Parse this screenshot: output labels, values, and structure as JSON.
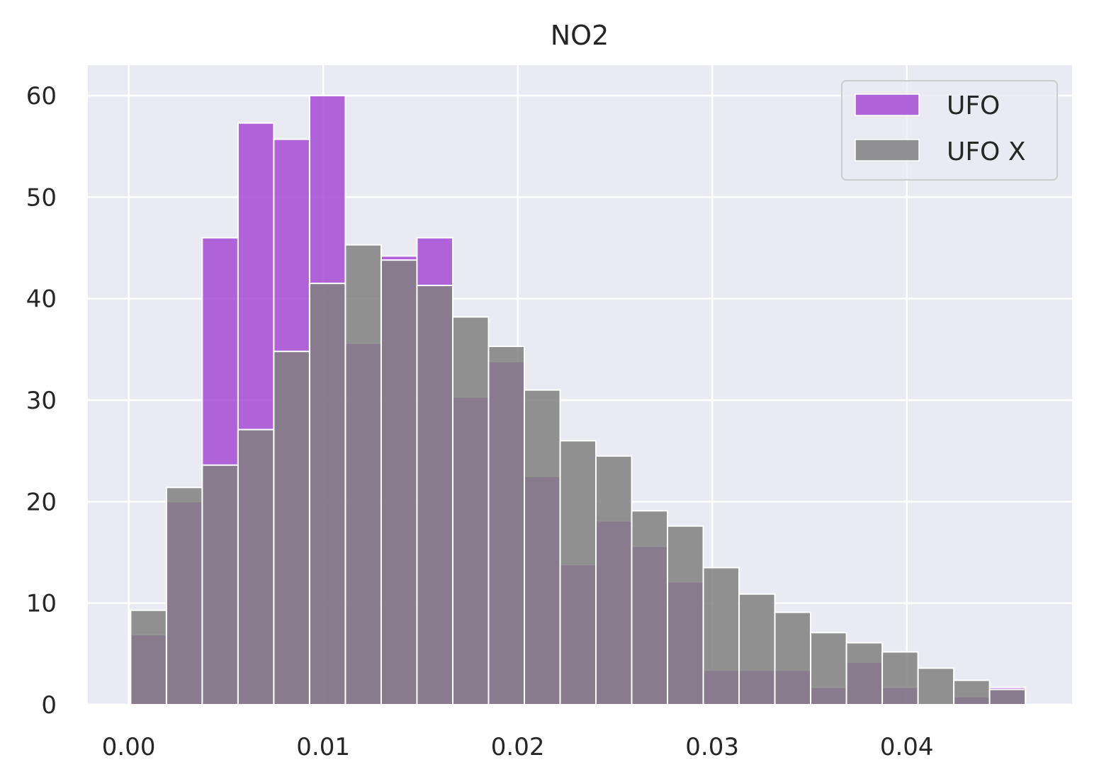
{
  "chart_data": {
    "type": "bar",
    "title": "NO2",
    "xlabel": "",
    "ylabel": "",
    "xlim": [
      -0.0021,
      0.0485
    ],
    "ylim": [
      0,
      63
    ],
    "xticks": [
      0.0,
      0.01,
      0.02,
      0.03,
      0.04
    ],
    "xtick_labels": [
      "0.00",
      "0.01",
      "0.02",
      "0.03",
      "0.04"
    ],
    "yticks": [
      0,
      10,
      20,
      30,
      40,
      50,
      60
    ],
    "ytick_labels": [
      "0",
      "10",
      "20",
      "30",
      "40",
      "50",
      "60"
    ],
    "grid": true,
    "legend_position": "top-right",
    "bin_start": 0.0001,
    "bin_width": 0.00184,
    "series": [
      {
        "name": "UFO",
        "color": "#a64ad3",
        "values": [
          6.9,
          20.0,
          46.0,
          57.3,
          55.7,
          60.0,
          35.6,
          44.2,
          46.0,
          30.3,
          33.8,
          22.5,
          13.8,
          18.1,
          15.6,
          12.1,
          3.4,
          3.4,
          3.4,
          1.7,
          4.2,
          1.7,
          0,
          0.8,
          1.7
        ]
      },
      {
        "name": "UFO X",
        "color": "#808080",
        "values": [
          9.3,
          21.4,
          23.6,
          27.1,
          34.8,
          41.5,
          45.3,
          43.8,
          41.3,
          38.2,
          35.3,
          31.0,
          26.0,
          24.5,
          19.1,
          17.6,
          13.5,
          10.9,
          9.1,
          7.1,
          6.1,
          5.2,
          3.6,
          2.4,
          1.5
        ]
      }
    ]
  }
}
